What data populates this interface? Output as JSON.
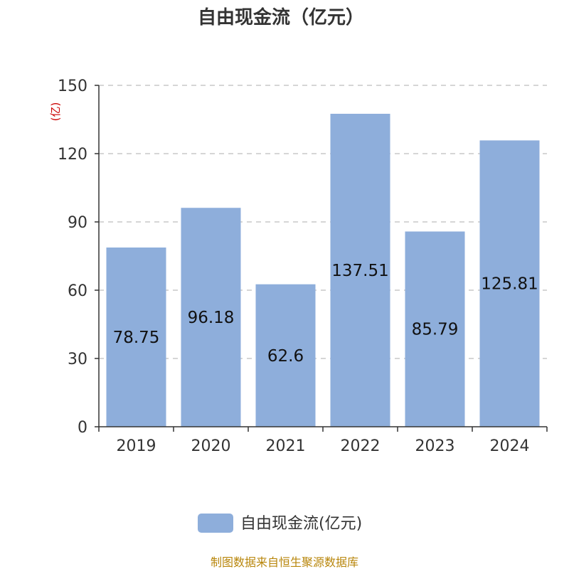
{
  "chart_data": {
    "type": "bar",
    "title": "自由现金流（亿元）",
    "unit_label": "(亿)",
    "categories": [
      "2019",
      "2020",
      "2021",
      "2022",
      "2023",
      "2024"
    ],
    "series": [
      {
        "name": "自由现金流(亿元)",
        "values": [
          78.75,
          96.18,
          62.6,
          137.51,
          85.79,
          125.81
        ],
        "labels": [
          "78.75",
          "96.18",
          "62.6",
          "137.51",
          "85.79",
          "125.81"
        ],
        "color": "#8eaedb"
      }
    ],
    "yticks": [
      "0",
      "30",
      "60",
      "90",
      "120",
      "150"
    ],
    "ylim": [
      0,
      150
    ],
    "grid": true,
    "legend_position": "bottom"
  },
  "source": "制图数据来自恒生聚源数据库"
}
